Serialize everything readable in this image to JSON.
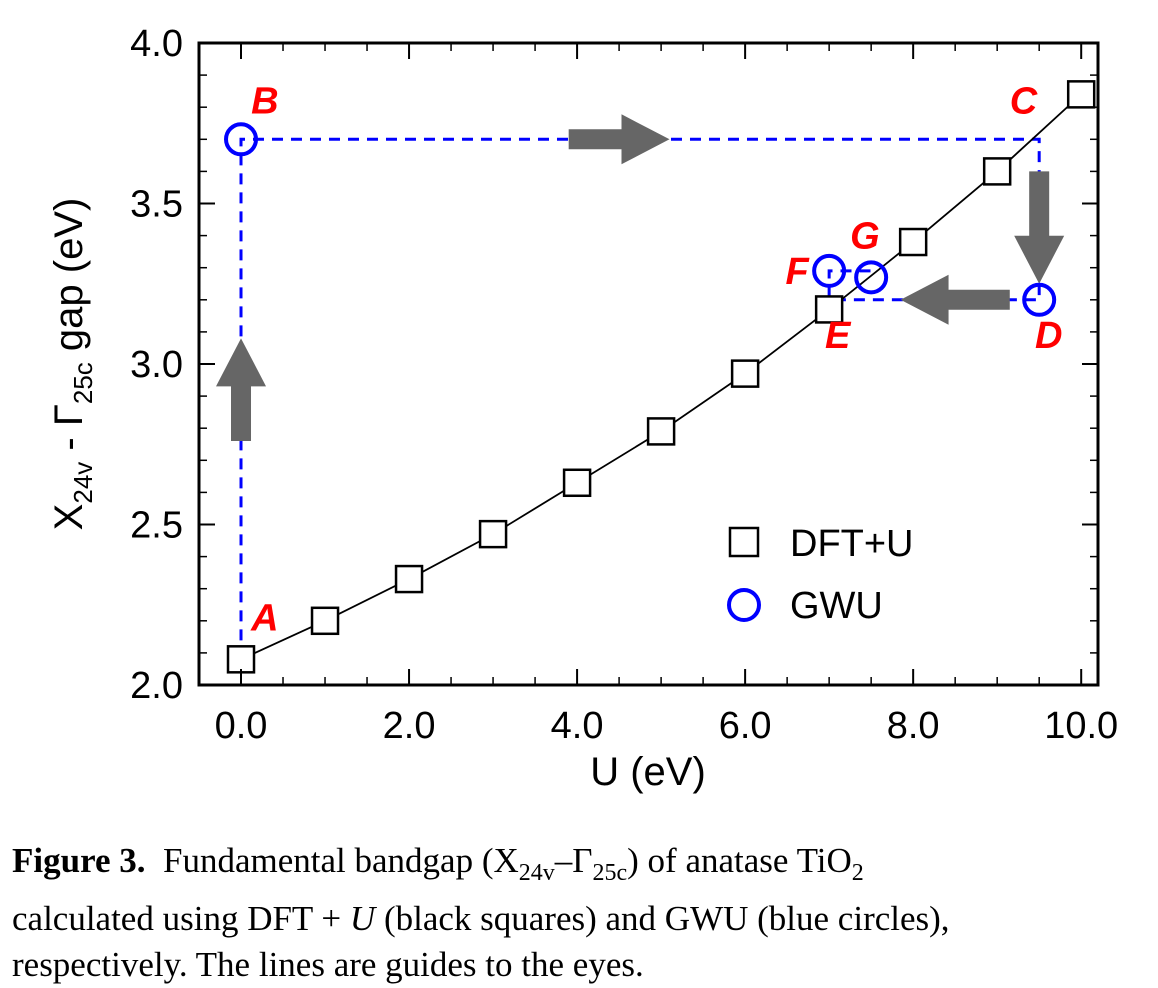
{
  "chart_data": {
    "type": "scatter",
    "xlabel": "U (eV)",
    "ylabel_parts": [
      "X",
      "24v",
      " - ",
      "Γ",
      "25c",
      " gap (eV)"
    ],
    "xlim": [
      -0.5,
      10.2
    ],
    "ylim": [
      2.0,
      4.0
    ],
    "x_ticks": [
      0,
      2,
      4,
      6,
      8,
      10
    ],
    "x_tick_labels": [
      "0.0",
      "2.0",
      "4.0",
      "6.0",
      "8.0",
      "10.0"
    ],
    "y_ticks": [
      2.0,
      2.5,
      3.0,
      3.5,
      4.0
    ],
    "y_tick_labels": [
      "2.0",
      "2.5",
      "3.0",
      "3.5",
      "4.0"
    ],
    "x_minor_step": 0.5,
    "y_minor_step": 0.1,
    "grid": false,
    "legend_position": "bottom-right",
    "series": [
      {
        "name": "DFT+U",
        "marker": "square",
        "color": "#000000",
        "line": "solid",
        "x": [
          0,
          1,
          2,
          3,
          4,
          5,
          6,
          7,
          8,
          9,
          10
        ],
        "y": [
          2.08,
          2.2,
          2.33,
          2.47,
          2.63,
          2.79,
          2.97,
          3.17,
          3.38,
          3.6,
          3.84
        ]
      },
      {
        "name": "GWU",
        "marker": "circle",
        "color": "#0000ff",
        "x": [
          0,
          7,
          7.5,
          9.5
        ],
        "y": [
          3.7,
          3.29,
          3.27,
          3.2
        ]
      }
    ],
    "guide_path": {
      "color": "#0000ff",
      "style": "dashed",
      "points": [
        [
          0,
          2.08
        ],
        [
          0,
          3.7
        ],
        [
          9.5,
          3.7
        ],
        [
          9.5,
          3.2
        ],
        [
          7.0,
          3.2
        ],
        [
          7.0,
          3.29
        ],
        [
          7.5,
          3.29
        ]
      ]
    },
    "arrows": [
      {
        "direction": "up",
        "x": 0,
        "y_from": 2.76,
        "y_to": 3.08,
        "color": "#666666"
      },
      {
        "direction": "right",
        "y": 3.7,
        "x_from": 3.9,
        "x_to": 5.1,
        "color": "#666666"
      },
      {
        "direction": "down",
        "x": 9.5,
        "y_from": 3.6,
        "y_to": 3.25,
        "color": "#666666"
      },
      {
        "direction": "left",
        "y": 3.2,
        "x_from": 9.15,
        "x_to": 7.85,
        "color": "#666666"
      }
    ],
    "annotations": [
      {
        "text": "A",
        "x": 0.12,
        "y": 2.17
      },
      {
        "text": "B",
        "x": 0.12,
        "y": 3.78
      },
      {
        "text": "C",
        "x": 9.15,
        "y": 3.78
      },
      {
        "text": "D",
        "x": 9.45,
        "y": 3.05
      },
      {
        "text": "E",
        "x": 6.95,
        "y": 3.05
      },
      {
        "text": "F",
        "x": 6.48,
        "y": 3.25
      },
      {
        "text": "G",
        "x": 7.25,
        "y": 3.36
      }
    ],
    "label_color": "#ff0000"
  },
  "caption": {
    "label": "Figure 3.",
    "text_before_sub1": "Fundamental bandgap (X",
    "sub1": "24v",
    "dash": "–Γ",
    "sub2": "25c",
    "text_mid": ") of anatase TiO",
    "sub3": "2",
    "line2_before_var": "calculated using DFT + ",
    "var": "U",
    "line2_after_var": " (black squares) and GWU (blue circles),",
    "line3": "respectively. The lines are guides to the eyes."
  }
}
